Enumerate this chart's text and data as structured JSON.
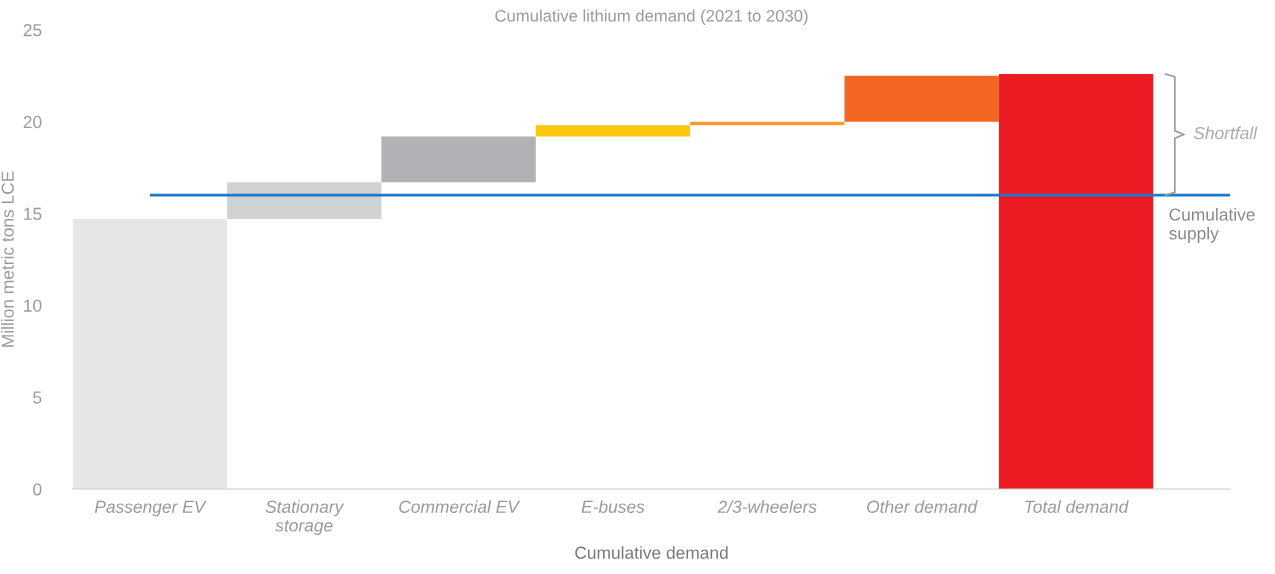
{
  "chart_data": {
    "type": "bar",
    "title": "Cumulative lithium demand (2021 to 2030)",
    "xlabel": "Cumulative demand",
    "ylabel": "Million metric tons LCE",
    "categories": [
      "Passenger EV",
      "Stationary storage",
      "Commercial EV",
      "E-buses",
      "2/3-wheelers",
      "Other demand",
      "Total demand"
    ],
    "values": [
      14.7,
      2.0,
      2.5,
      0.6,
      0.2,
      2.5,
      22.6
    ],
    "base": [
      0,
      14.7,
      16.7,
      19.2,
      19.8,
      20.0,
      0
    ],
    "colors": [
      "#e5e6e8",
      "#d1d2d4",
      "#b1b2b5",
      "#fdc70c",
      "#f89a36",
      "#f26522",
      "#ed1c24"
    ],
    "ylim": [
      0,
      25
    ],
    "yticks": [
      0,
      5,
      10,
      15,
      20,
      25
    ],
    "ref_lines": [
      {
        "axis": "y",
        "value": 16,
        "label": "Cumulative supply",
        "color": "#1f78c8"
      }
    ],
    "annotations": [
      "Shortfall"
    ],
    "grid": false
  }
}
